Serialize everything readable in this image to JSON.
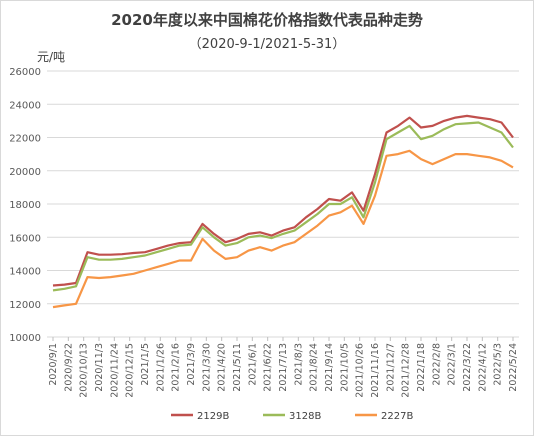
{
  "chart_data": {
    "type": "line",
    "title": "2020年度以来中国棉花价格指数代表品种走势",
    "subtitle": "（2020-9-1/2021-5-31）",
    "ylabel": "元/吨",
    "xlabel": "",
    "ylim": [
      10000,
      26000
    ],
    "yticks": [
      "10000",
      "12000",
      "14000",
      "16000",
      "18000",
      "20000",
      "22000",
      "24000",
      "26000"
    ],
    "x_tick_labels": [
      "2020/9/1",
      "2020/9/22",
      "2020/10/13",
      "2020/11/3",
      "2020/11/24",
      "2020/12/15",
      "2021/1/5",
      "2021/1/26",
      "2021/2/16",
      "2021/3/9",
      "2021/3/30",
      "2021/4/20",
      "2021/5/11",
      "2021/6/1",
      "2021/6/22",
      "2021/7/13",
      "2021/8/3",
      "2021/8/24",
      "2021/9/14",
      "2021/10/5",
      "2021/10/26",
      "2021/11/16",
      "2021/12/7",
      "2021/12/28",
      "2022/1/18",
      "2022/2/8",
      "2022/3/1",
      "2022/3/22",
      "2022/4/12",
      "2022/5/3",
      "2022/5/24"
    ],
    "grid": "horizontal",
    "legend_position": "bottom",
    "series": [
      {
        "name": "2129B",
        "color": "#c0504d",
        "values": [
          13100,
          13150,
          13250,
          15100,
          14950,
          14950,
          14980,
          15050,
          15100,
          15300,
          15500,
          15650,
          15700,
          16800,
          16200,
          15700,
          15900,
          16200,
          16300,
          16100,
          16400,
          16600,
          17200,
          17700,
          18300,
          18200,
          18700,
          17600,
          19800,
          22300,
          22700,
          23200,
          22600,
          22700,
          23000,
          23200,
          23300,
          23200,
          23100,
          22900,
          22000
        ]
      },
      {
        "name": "3128B",
        "color": "#9bbb59",
        "values": [
          12800,
          12900,
          13050,
          14800,
          14650,
          14650,
          14700,
          14800,
          14900,
          15100,
          15300,
          15500,
          15550,
          16600,
          16000,
          15500,
          15650,
          16000,
          16100,
          15950,
          16200,
          16400,
          16900,
          17400,
          18000,
          18000,
          18400,
          17200,
          19300,
          21900,
          22300,
          22700,
          21900,
          22100,
          22500,
          22800,
          22850,
          22900,
          22600,
          22300,
          21400
        ]
      },
      {
        "name": "2227B",
        "color": "#f79646",
        "values": [
          11800,
          11900,
          12000,
          13600,
          13550,
          13600,
          13700,
          13800,
          14000,
          14200,
          14400,
          14600,
          14600,
          15900,
          15200,
          14700,
          14800,
          15200,
          15400,
          15200,
          15500,
          15700,
          16200,
          16700,
          17300,
          17500,
          17900,
          16800,
          18500,
          20900,
          21000,
          21200,
          20700,
          20400,
          20700,
          21000,
          21000,
          20900,
          20800,
          20600,
          20200
        ]
      }
    ]
  }
}
